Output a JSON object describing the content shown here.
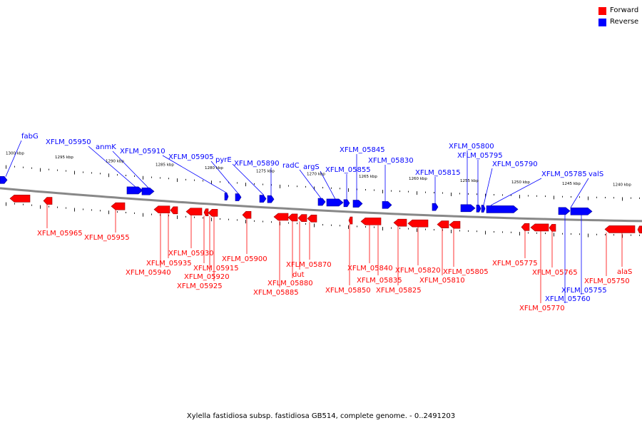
{
  "caption": "Xylella fastidiosa subsp. fastidiosa GB514, complete genome. - 0..2491203",
  "legend": {
    "forward": {
      "label": "Forward",
      "color": "#ff0000"
    },
    "reverse": {
      "label": "Reverse",
      "color": "#0000ff"
    }
  },
  "colors": {
    "forward": "#ff0000",
    "reverse": "#0000ff",
    "backbone": "#888888"
  },
  "scale_labels": [
    "1300 kbp",
    "1295 kbp",
    "1290 kbp",
    "1285 kbp",
    "1280 kbp",
    "1275 kbp",
    "1270 kbp",
    "1265 kbp",
    "1260 kbp",
    "1255 kbp",
    "1250 kbp",
    "1245 kbp",
    "1240 kbp"
  ],
  "reverse_genes": [
    "fabG",
    "XFLM_05950",
    "anmK",
    "XFLM_05910",
    "XFLM_05905",
    "pyrE",
    "XFLM_05890",
    "radC",
    "argS",
    "XFLM_05855",
    "XFLM_05845",
    "XFLM_05830",
    "XFLM_05815",
    "XFLM_05800",
    "XFLM_05795",
    "XFLM_05790",
    "XFLM_05785",
    "valS",
    "XFLM_05760",
    "XFLM_05755"
  ],
  "forward_genes": [
    "XFLM_05965",
    "XFLM_05955",
    "XFLM_05940",
    "XFLM_05935",
    "XFLM_05930",
    "XFLM_05925",
    "XFLM_05920",
    "XFLM_05915",
    "XFLM_05900",
    "XFLM_05885",
    "XFLM_05880",
    "dut",
    "XFLM_05870",
    "XFLM_05850",
    "XFLM_05840",
    "XFLM_05835",
    "XFLM_05825",
    "XFLM_05820",
    "XFLM_05810",
    "XFLM_05805",
    "XFLM_05775",
    "XFLM_05770",
    "XFLM_05765",
    "XFLM_05750",
    "alaS"
  ]
}
